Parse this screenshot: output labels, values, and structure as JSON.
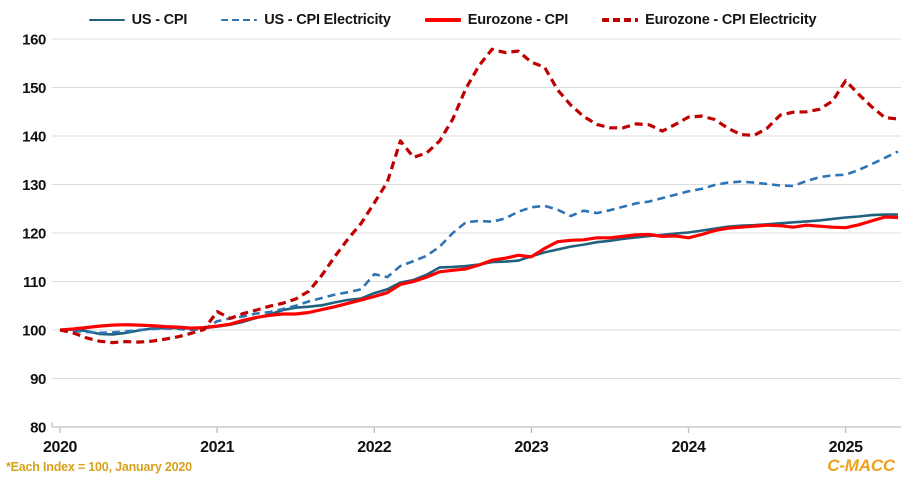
{
  "footnote": "*Each Index = 100, January 2020",
  "brand": "C-MACC",
  "colors": {
    "us_cpi": "#20617D",
    "us_cpi_electricity": "#2E74B5",
    "eurozone_cpi": "#FE0000",
    "eurozone_cpi_electricity": "#C00000",
    "gridline": "#DCDCDC",
    "axis": "#BFBFBF",
    "axis_text": "#111111",
    "accent_gold": "#D7A11E"
  },
  "chart_data": {
    "type": "line",
    "title": "",
    "xlabel": "",
    "ylabel": "",
    "x_frequency": "monthly",
    "x_start": "2020-01",
    "x_end": "2025-05",
    "x_tick_labels": [
      "2020",
      "2021",
      "2022",
      "2023",
      "2024",
      "2025"
    ],
    "ylim": [
      80,
      160
    ],
    "y_ticks": [
      80,
      90,
      100,
      110,
      120,
      130,
      140,
      150,
      160
    ],
    "grid": true,
    "legend_position": "top",
    "series": [
      {
        "id": "us-cpi",
        "name": "US - CPI",
        "style": "solid",
        "color": "#20617D",
        "width": 2.6,
        "values": [
          100.0,
          100.1,
          99.8,
          99.2,
          99.1,
          99.4,
          99.9,
          100.3,
          100.4,
          100.4,
          100.3,
          100.4,
          100.7,
          101.1,
          101.7,
          102.5,
          103.2,
          104.1,
          104.6,
          104.8,
          105.1,
          105.7,
          106.2,
          106.5,
          107.6,
          108.4,
          109.8,
          110.3,
          111.4,
          112.9,
          113.0,
          113.2,
          113.5,
          114.0,
          114.1,
          114.3,
          115.2,
          116.0,
          116.6,
          117.2,
          117.6,
          118.1,
          118.4,
          118.8,
          119.1,
          119.4,
          119.6,
          119.9,
          120.1,
          120.5,
          120.9,
          121.3,
          121.5,
          121.6,
          121.8,
          122.0,
          122.2,
          122.4,
          122.6,
          122.9,
          123.2,
          123.4,
          123.7,
          123.8,
          123.8
        ]
      },
      {
        "id": "us-cpi-electricity",
        "name": "US - CPI Electricity",
        "style": "dashed",
        "color": "#2E74B5",
        "width": 2.6,
        "values": [
          100.0,
          99.8,
          99.6,
          99.4,
          99.5,
          99.7,
          100.0,
          100.2,
          100.3,
          100.2,
          100.0,
          100.2,
          101.8,
          102.4,
          102.8,
          103.4,
          103.7,
          104.3,
          105.0,
          105.9,
          106.6,
          107.3,
          107.8,
          108.4,
          111.5,
          110.9,
          113.2,
          114.2,
          115.3,
          117.2,
          120.0,
          122.2,
          122.5,
          122.3,
          123.0,
          124.4,
          125.3,
          125.6,
          124.8,
          123.5,
          124.6,
          124.1,
          124.7,
          125.4,
          126.1,
          126.5,
          127.2,
          127.9,
          128.6,
          129.1,
          129.9,
          130.4,
          130.6,
          130.4,
          130.1,
          129.8,
          129.7,
          130.7,
          131.5,
          131.9,
          132.0,
          133.0,
          134.2,
          135.5,
          136.8
        ]
      },
      {
        "id": "eurozone-cpi",
        "name": "Eurozone - CPI",
        "style": "solid",
        "color": "#FE0000",
        "width": 3.2,
        "values": [
          100.0,
          100.2,
          100.5,
          100.8,
          101.0,
          101.1,
          101.0,
          100.9,
          100.7,
          100.6,
          100.4,
          100.5,
          100.8,
          101.2,
          102.0,
          102.6,
          103.0,
          103.3,
          103.3,
          103.6,
          104.2,
          104.8,
          105.5,
          106.2,
          106.9,
          107.7,
          109.4,
          110.0,
          110.9,
          112.0,
          112.3,
          112.6,
          113.4,
          114.4,
          114.8,
          115.4,
          115.1,
          116.8,
          118.2,
          118.5,
          118.6,
          119.0,
          119.0,
          119.3,
          119.6,
          119.7,
          119.3,
          119.4,
          119.0,
          119.7,
          120.5,
          121.0,
          121.2,
          121.4,
          121.6,
          121.5,
          121.2,
          121.6,
          121.4,
          121.2,
          121.1,
          121.7,
          122.5,
          123.3,
          123.2
        ]
      },
      {
        "id": "eurozone-cpi-electricity",
        "name": "Eurozone - CPI Electricity",
        "style": "dashed",
        "color": "#C00000",
        "width": 3.2,
        "values": [
          100.0,
          99.4,
          98.4,
          97.7,
          97.4,
          97.6,
          97.5,
          97.7,
          98.1,
          98.6,
          99.3,
          100.1,
          103.8,
          102.4,
          103.4,
          104.1,
          104.9,
          105.5,
          106.4,
          108.0,
          111.3,
          115.2,
          118.8,
          122.0,
          126.2,
          130.5,
          139.0,
          135.6,
          136.5,
          139.0,
          143.5,
          149.8,
          154.5,
          157.9,
          157.2,
          157.5,
          155.2,
          154.2,
          149.5,
          146.4,
          144.0,
          142.4,
          141.7,
          141.7,
          142.5,
          142.3,
          141.0,
          142.4,
          143.9,
          144.1,
          143.4,
          141.6,
          140.3,
          140.1,
          141.6,
          144.3,
          144.9,
          145.0,
          145.5,
          147.2,
          151.4,
          148.6,
          146.0,
          143.8,
          143.5
        ]
      }
    ]
  }
}
